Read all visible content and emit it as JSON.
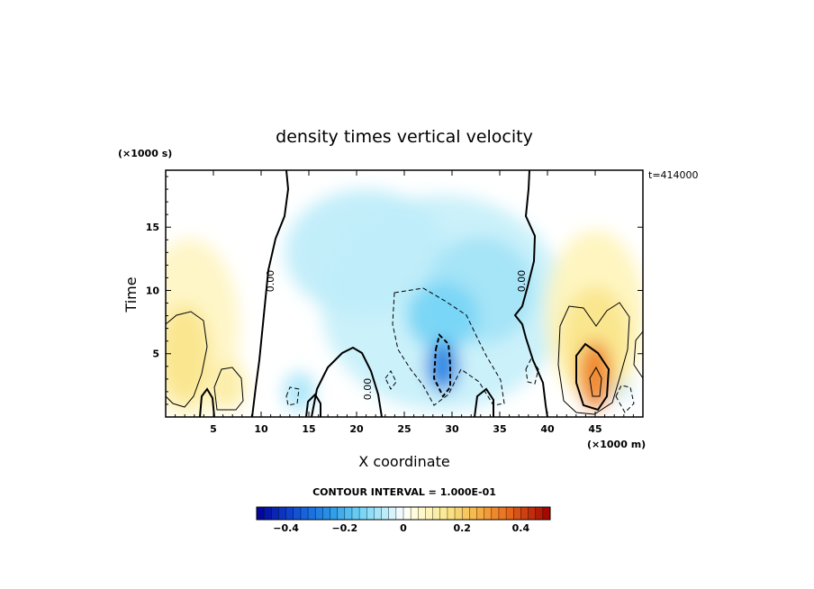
{
  "chart_data": {
    "type": "heatmap",
    "title": "density times vertical velocity",
    "xlabel": "X coordinate",
    "ylabel": "Time",
    "x_unit": "(×1000 m)",
    "y_unit": "(×1000 s)",
    "time_label": "t=414000",
    "xlim": [
      0,
      50
    ],
    "ylim": [
      0,
      19.5
    ],
    "x_ticks": [
      5,
      10,
      15,
      20,
      25,
      30,
      35,
      40,
      45
    ],
    "y_ticks": [
      5,
      10,
      15
    ],
    "contour_interval_text": "CONTOUR INTERVAL = 1.000E-01",
    "zero_contour_labels": [
      "0.00",
      "0.00",
      "0.00"
    ],
    "colorbar": {
      "range": [
        -0.5,
        0.5
      ],
      "step": 0.025,
      "tick_values": [
        -0.4,
        -0.2,
        0,
        0.2,
        0.4
      ],
      "tick_labels": [
        "−0.4",
        "−0.2",
        "0",
        "0.2",
        "0.4"
      ]
    },
    "features": [
      {
        "kind": "positive",
        "x": 45,
        "y": 3,
        "peak": 0.32
      },
      {
        "kind": "positive",
        "x": 45,
        "y": 7,
        "peak": 0.17
      },
      {
        "kind": "positive",
        "x": 2,
        "y": 5,
        "peak": 0.15
      },
      {
        "kind": "positive",
        "x": 6.5,
        "y": 2.5,
        "peak": 0.11
      },
      {
        "kind": "negative",
        "x": 29,
        "y": 4,
        "peak": -0.28
      },
      {
        "kind": "negative",
        "x": 29,
        "y": 8,
        "peak": -0.14
      },
      {
        "kind": "negative",
        "x": 20,
        "y": 12,
        "peak": -0.05
      },
      {
        "kind": "negative",
        "x": 47,
        "y": 3,
        "peak": -0.12
      }
    ]
  }
}
